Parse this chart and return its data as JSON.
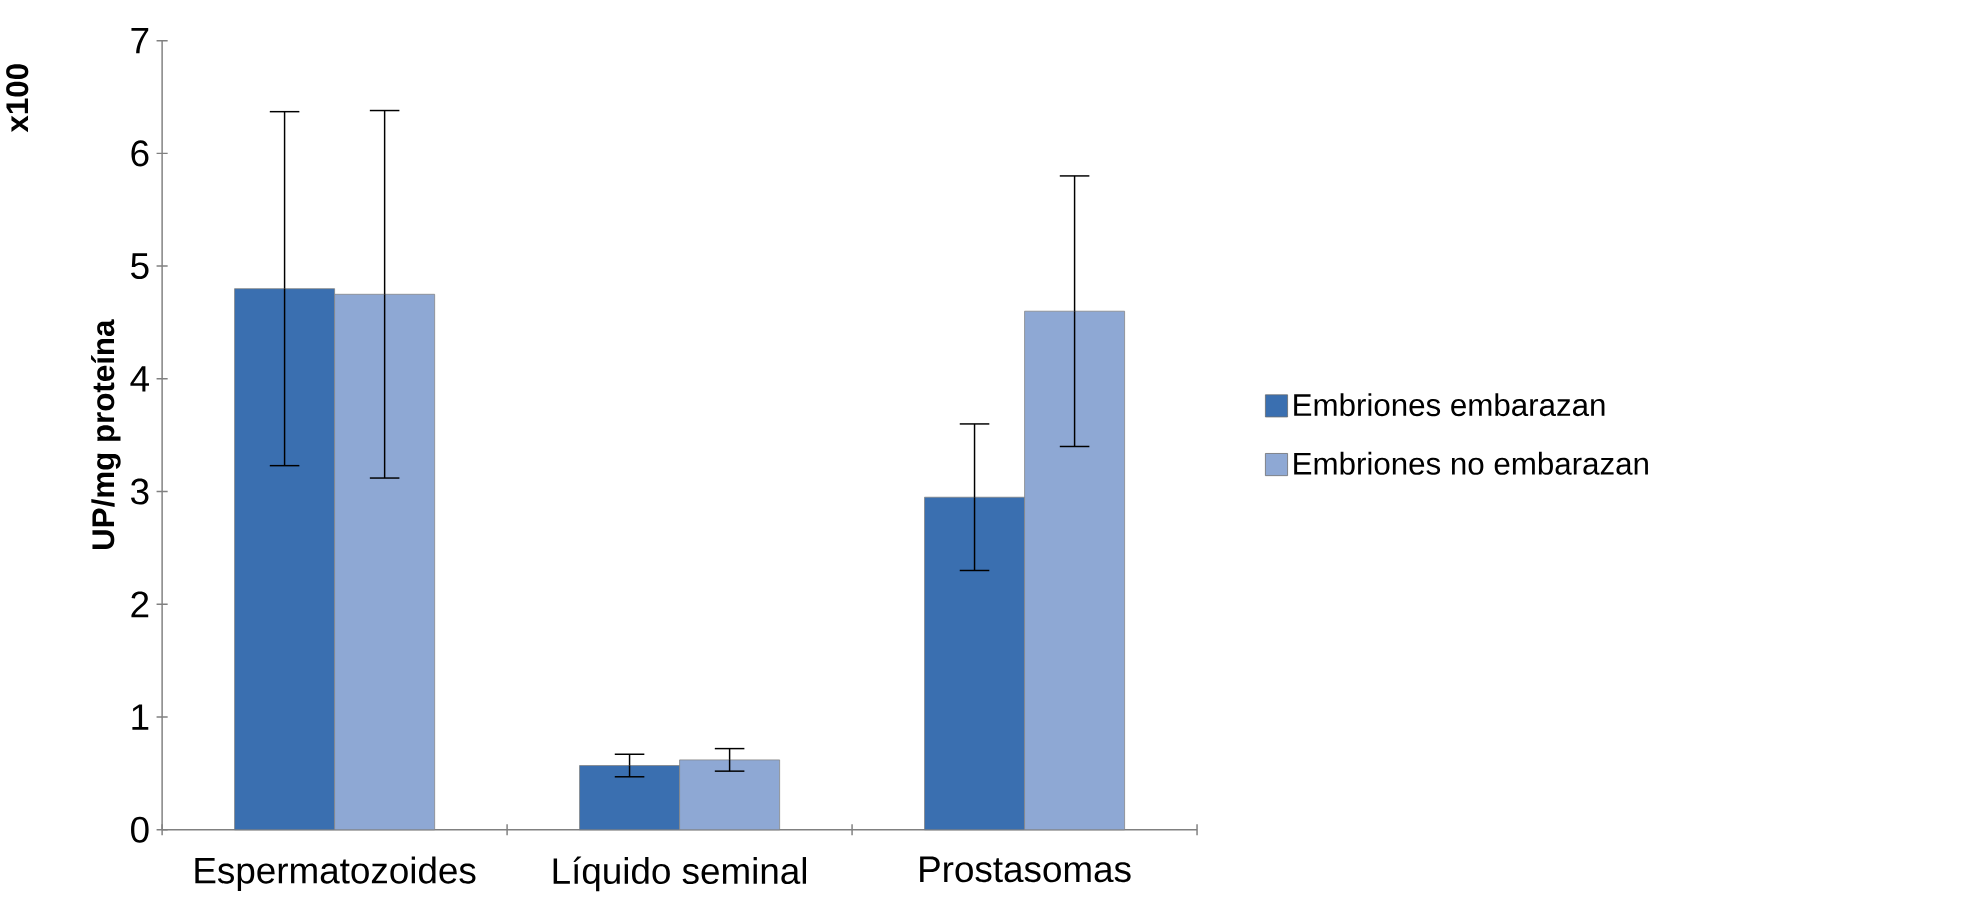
{
  "chart_data": {
    "type": "bar",
    "ylabel": "UP/mg proteína",
    "annotations": [
      "x100"
    ],
    "categories": [
      "Espermatozoides",
      "Líquido seminal",
      "Prostasomas"
    ],
    "series": [
      {
        "name": "Embriones embarazan",
        "color": "#3a6fb0",
        "values": [
          4.8,
          0.57,
          2.95
        ],
        "errors": [
          1.57,
          0.1,
          0.65
        ]
      },
      {
        "name": "Embriones no embarazan",
        "color": "#8ea8d4",
        "values": [
          4.75,
          0.62,
          4.6
        ],
        "errors": [
          1.63,
          0.1,
          1.2
        ]
      }
    ],
    "ylim": [
      0,
      7
    ],
    "yticks": [
      0,
      1,
      2,
      3,
      4,
      5,
      6,
      7
    ],
    "grid": false,
    "legend": "right"
  }
}
